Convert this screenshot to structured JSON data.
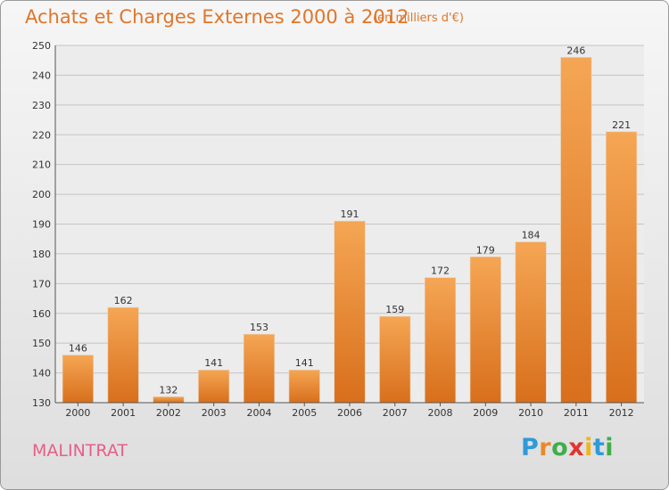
{
  "header": {
    "title": "Achats et Charges Externes 2000 à 2012",
    "unit": "(en milliers d'€)"
  },
  "footer": {
    "commune": "MALINTRAT",
    "brand_letters": [
      "P",
      "r",
      "o",
      "x",
      "i",
      "t",
      "i"
    ],
    "brand_colors": [
      "#2f9ad8",
      "#e8892a",
      "#3fae49",
      "#e2352f",
      "#f1b51c",
      "#2f9ad8",
      "#3fae49"
    ]
  },
  "chart_data": {
    "type": "bar",
    "categories": [
      "2000",
      "2001",
      "2002",
      "2003",
      "2004",
      "2005",
      "2006",
      "2007",
      "2008",
      "2009",
      "2010",
      "2011",
      "2012"
    ],
    "values": [
      146,
      162,
      132,
      141,
      153,
      141,
      191,
      159,
      172,
      179,
      184,
      246,
      221
    ],
    "title": "Achats et Charges Externes 2000 à 2012",
    "subtitle": "(en milliers d'€)",
    "xlabel": "",
    "ylabel": "",
    "ylim": [
      130,
      250
    ],
    "yticks": [
      130,
      140,
      150,
      160,
      170,
      180,
      190,
      200,
      210,
      220,
      230,
      240,
      250
    ],
    "grid": true,
    "legend": "none",
    "bar_color": "#f08a2c",
    "data_labels": true
  }
}
